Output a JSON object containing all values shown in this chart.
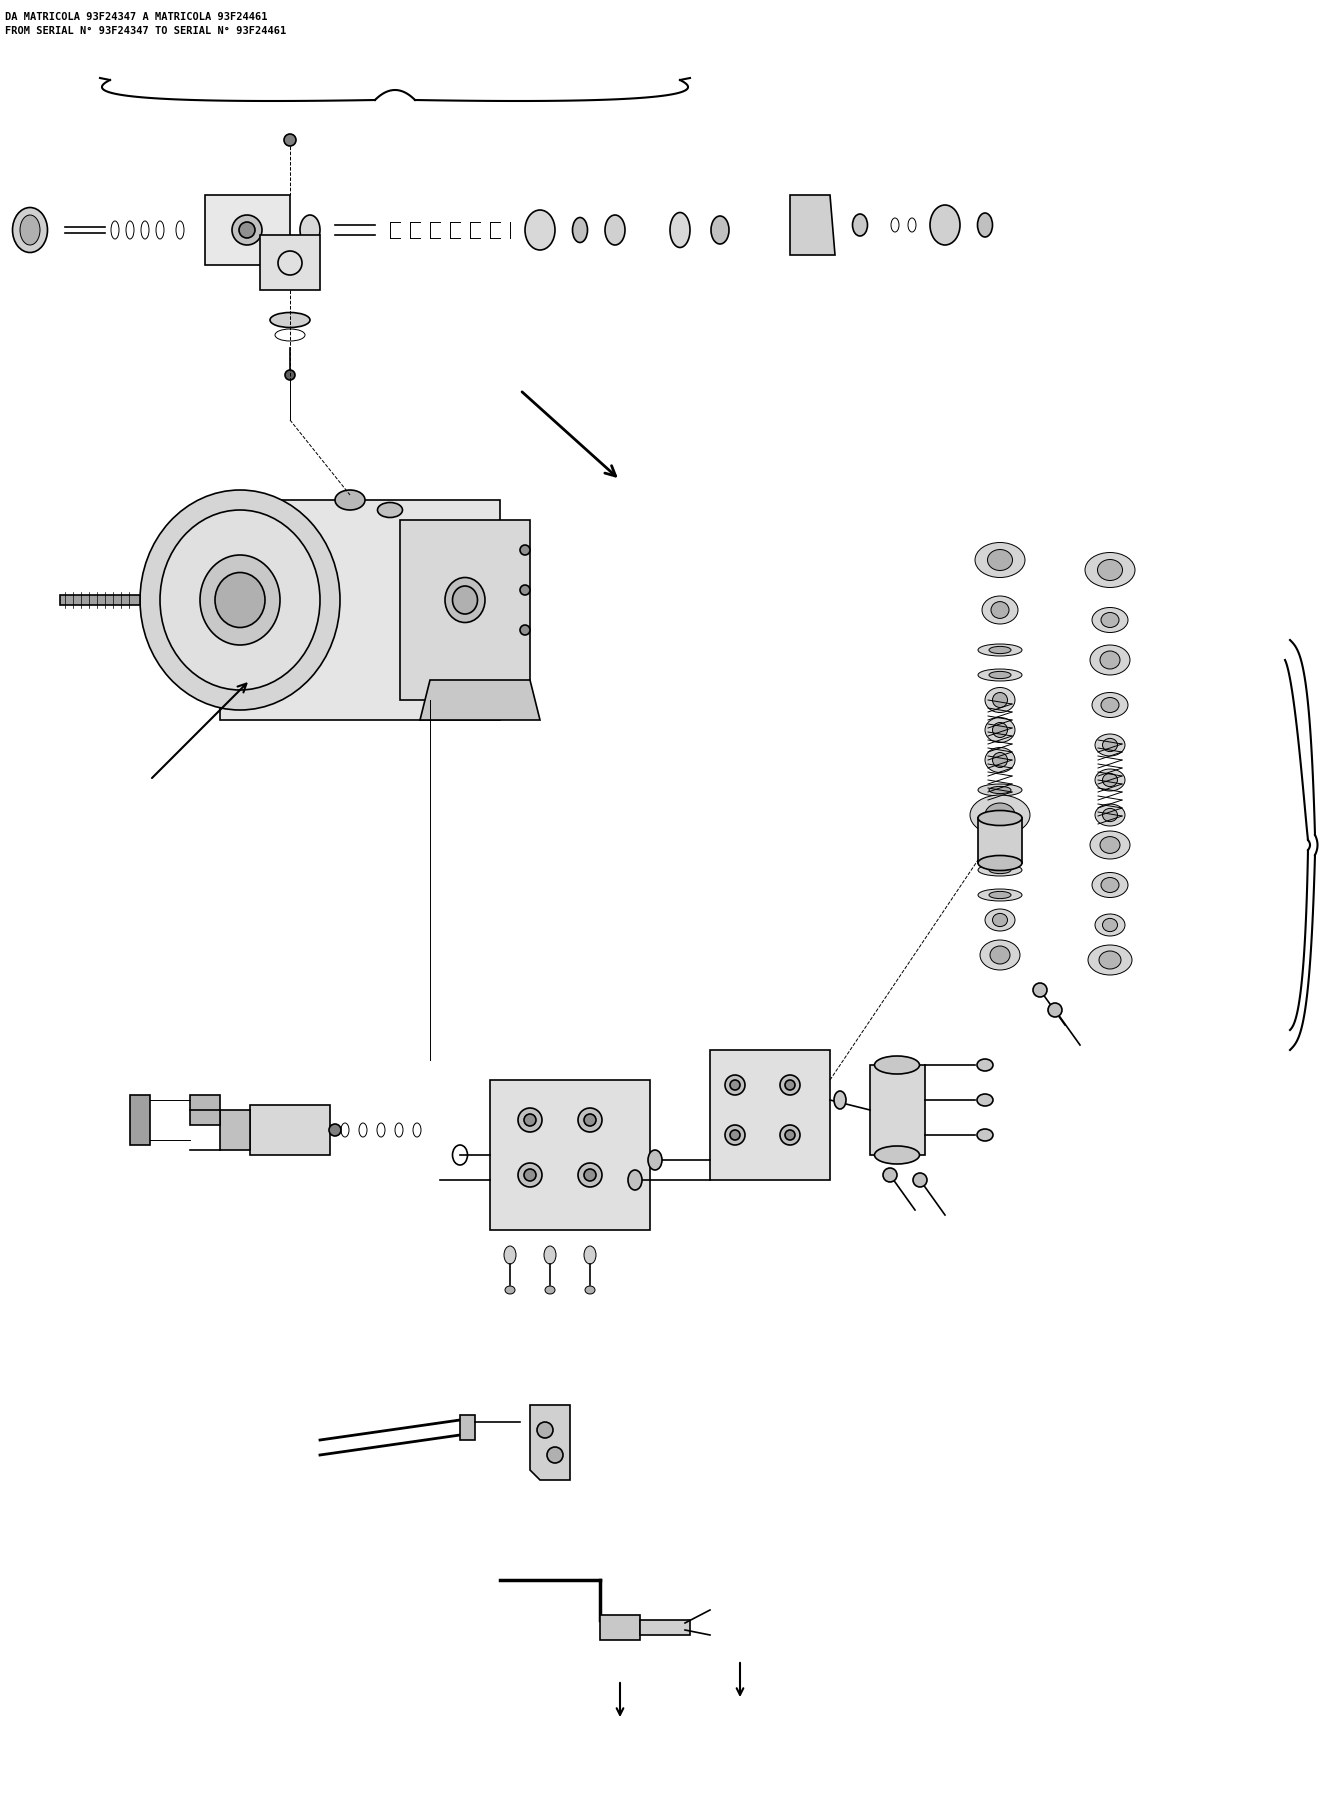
{
  "title_line1": "DA MATRICOLA 93F24347 A MATRICOLA 93F24461",
  "title_line2": "FROM SERIAL N° 93F24347 TO SERIAL N° 93F24461",
  "background_color": "#ffffff",
  "line_color": "#000000",
  "title_fontsize": 7.5,
  "figsize": [
    13.28,
    17.98
  ],
  "dpi": 100
}
